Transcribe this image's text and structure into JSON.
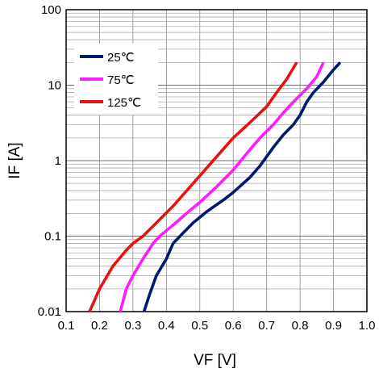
{
  "chart_data": {
    "type": "line",
    "xlabel": "VF [V]",
    "ylabel": "IF [A]",
    "x_scale": "linear",
    "y_scale": "log",
    "xlim": [
      0.1,
      1.0
    ],
    "ylim": [
      0.01,
      100
    ],
    "x_ticks": [
      "0.1",
      "0.2",
      "0.3",
      "0.4",
      "0.5",
      "0.6",
      "0.7",
      "0.8",
      "0.9",
      "1.0"
    ],
    "y_ticks": [
      "0.01",
      "0.1",
      "1",
      "10",
      "100"
    ],
    "grid": true,
    "legend_position": "top-left",
    "series": [
      {
        "name": "25℃",
        "color": "#001a6e",
        "x": [
          0.333,
          0.35,
          0.37,
          0.4,
          0.42,
          0.45,
          0.48,
          0.52,
          0.57,
          0.6,
          0.65,
          0.68,
          0.72,
          0.75,
          0.78,
          0.8,
          0.82,
          0.84,
          0.87,
          0.9,
          0.92
        ],
        "y": [
          0.01,
          0.017,
          0.03,
          0.05,
          0.08,
          0.11,
          0.15,
          0.21,
          0.3,
          0.38,
          0.6,
          0.85,
          1.5,
          2.2,
          3.0,
          4.0,
          6.0,
          8.0,
          11.0,
          16.0,
          20.0
        ]
      },
      {
        "name": "75℃",
        "color": "#ff1aff",
        "x": [
          0.262,
          0.28,
          0.3,
          0.33,
          0.36,
          0.38,
          0.42,
          0.46,
          0.5,
          0.55,
          0.6,
          0.65,
          0.68,
          0.72,
          0.75,
          0.78,
          0.82,
          0.85,
          0.87
        ],
        "y": [
          0.01,
          0.02,
          0.03,
          0.05,
          0.08,
          0.1,
          0.14,
          0.2,
          0.28,
          0.45,
          0.75,
          1.4,
          2.0,
          3.0,
          4.3,
          6.0,
          9.0,
          13.0,
          20.0
        ]
      },
      {
        "name": "125℃",
        "color": "#e8130e",
        "x": [
          0.17,
          0.2,
          0.24,
          0.28,
          0.3,
          0.33,
          0.37,
          0.42,
          0.48,
          0.54,
          0.6,
          0.65,
          0.7,
          0.73,
          0.76,
          0.79
        ],
        "y": [
          0.01,
          0.02,
          0.04,
          0.065,
          0.08,
          0.1,
          0.15,
          0.25,
          0.5,
          1.0,
          2.0,
          3.2,
          5.2,
          8.0,
          12.0,
          20.0
        ]
      }
    ]
  }
}
